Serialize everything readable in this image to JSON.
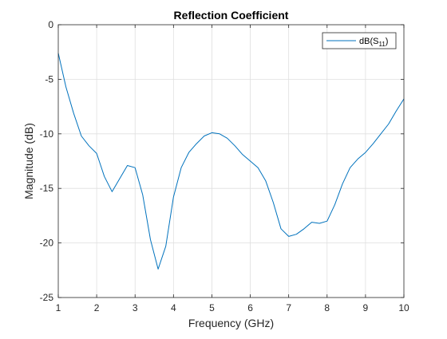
{
  "colors": {
    "series": "#0072bd",
    "grid": "#dfdfdf",
    "axis": "#262626",
    "background": "#ffffff"
  },
  "chart_data": {
    "type": "line",
    "title": "Reflection Coefficient",
    "xlabel": "Frequency (GHz)",
    "ylabel": "Magnitude (dB)",
    "xlim": [
      1,
      10
    ],
    "ylim": [
      -25,
      0
    ],
    "xticks": [
      1,
      2,
      3,
      4,
      5,
      6,
      7,
      8,
      9,
      10
    ],
    "xtick_labels": [
      "1",
      "2",
      "3",
      "4",
      "5",
      "6",
      "7",
      "8",
      "9",
      "10"
    ],
    "yticks": [
      -25,
      -20,
      -15,
      -10,
      -5,
      0
    ],
    "ytick_labels": [
      "-25",
      "-20",
      "-15",
      "-10",
      "-5",
      "0"
    ],
    "grid": true,
    "legend": {
      "location": "top-right",
      "base": "dB(S",
      "sub": "11",
      "close": ")"
    },
    "series": [
      {
        "name": "dB(S11)",
        "x": [
          1.0,
          1.2,
          1.4,
          1.6,
          1.8,
          2.0,
          2.2,
          2.4,
          2.6,
          2.8,
          3.0,
          3.2,
          3.4,
          3.6,
          3.8,
          4.0,
          4.2,
          4.4,
          4.6,
          4.8,
          5.0,
          5.2,
          5.4,
          5.6,
          5.8,
          6.0,
          6.2,
          6.4,
          6.6,
          6.8,
          7.0,
          7.2,
          7.4,
          7.6,
          7.8,
          8.0,
          8.2,
          8.4,
          8.6,
          8.8,
          9.0,
          9.2,
          9.4,
          9.6,
          9.8,
          10.0
        ],
        "y": [
          -2.6,
          -5.7,
          -8.1,
          -10.2,
          -11.1,
          -11.8,
          -13.9,
          -15.3,
          -14.1,
          -12.9,
          -13.1,
          -15.6,
          -19.7,
          -22.4,
          -20.3,
          -15.8,
          -13.1,
          -11.7,
          -10.9,
          -10.2,
          -9.9,
          -10.0,
          -10.4,
          -11.1,
          -11.9,
          -12.5,
          -13.1,
          -14.3,
          -16.3,
          -18.7,
          -19.4,
          -19.2,
          -18.7,
          -18.1,
          -18.2,
          -18.0,
          -16.5,
          -14.6,
          -13.1,
          -12.3,
          -11.7,
          -10.9,
          -10.0,
          -9.1,
          -7.9,
          -6.8
        ]
      }
    ]
  }
}
